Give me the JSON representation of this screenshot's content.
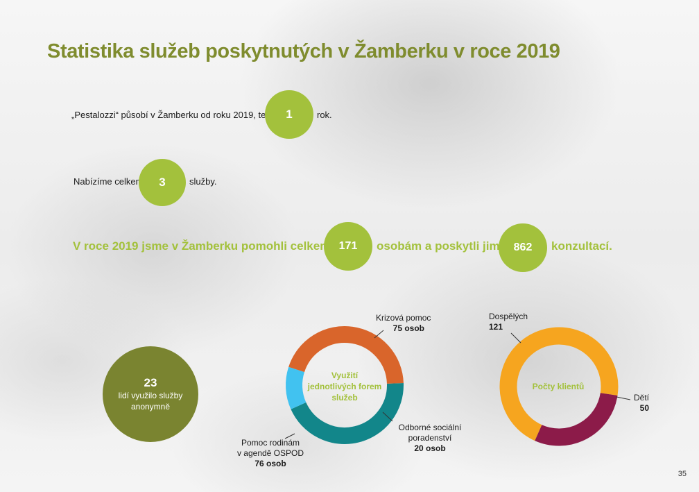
{
  "title": "Statistika služeb poskytnutých v Žamberku v roce 2019",
  "line1": {
    "before": "„Pestalozzi“ působí v Žamberku od roku 2019, tedy",
    "value": "1",
    "after": "rok."
  },
  "line2": {
    "before": "Nabízíme celkem",
    "value": "3",
    "after": "služby."
  },
  "line3": {
    "part1": "V roce 2019 jsme v Žamberku pomohli celkem",
    "value1": "171",
    "part2": "osobám a poskytli jim",
    "value2": "862",
    "part3": "konzultací."
  },
  "anonymous": {
    "value": "23",
    "label_line1": "lidí využilo služby",
    "label_line2": "anonymně"
  },
  "colors": {
    "title": "#7f8c2e",
    "accent_green": "#a3c13c",
    "olive": "#7a8430",
    "teal": "#12868a",
    "light_blue": "#41c2f0",
    "orange_red": "#d9652b",
    "orange": "#f6a51f",
    "wine": "#8c1b49"
  },
  "chart_data": [
    {
      "type": "pie",
      "donut": true,
      "title": "Využití jednotlivých forem služeb",
      "slices": [
        {
          "name": "Krizová pomoc",
          "value": 75,
          "label": "75 osob",
          "color": "#12868a"
        },
        {
          "name": "Odborné sociální poradenství",
          "value": 20,
          "label": "20 osob",
          "color": "#41c2f0"
        },
        {
          "name": "Pomoc rodinám v agendě OSPOD",
          "value": 76,
          "label": "76 osob",
          "color": "#d9652b"
        }
      ]
    },
    {
      "type": "pie",
      "donut": true,
      "title": "Počty klientů",
      "slices": [
        {
          "name": "Dospělých",
          "value": 121,
          "label": "121",
          "color": "#f6a51f"
        },
        {
          "name": "Dětí",
          "value": 50,
          "label": "50",
          "color": "#8c1b49"
        }
      ]
    }
  ],
  "labels": {
    "d1_title_line1": "Využití",
    "d1_title_line2": "jednotlivých forem",
    "d1_title_line3": "služeb",
    "krizova_name": "Krizová pomoc",
    "odborne_name_line1": "Odborné sociální",
    "odborne_name_line2": "poradenství",
    "pomoc_name_line1": "Pomoc rodinám",
    "pomoc_name_line2": "v agendě OSPOD",
    "d2_title": "Počty klientů"
  },
  "page_number": "35"
}
